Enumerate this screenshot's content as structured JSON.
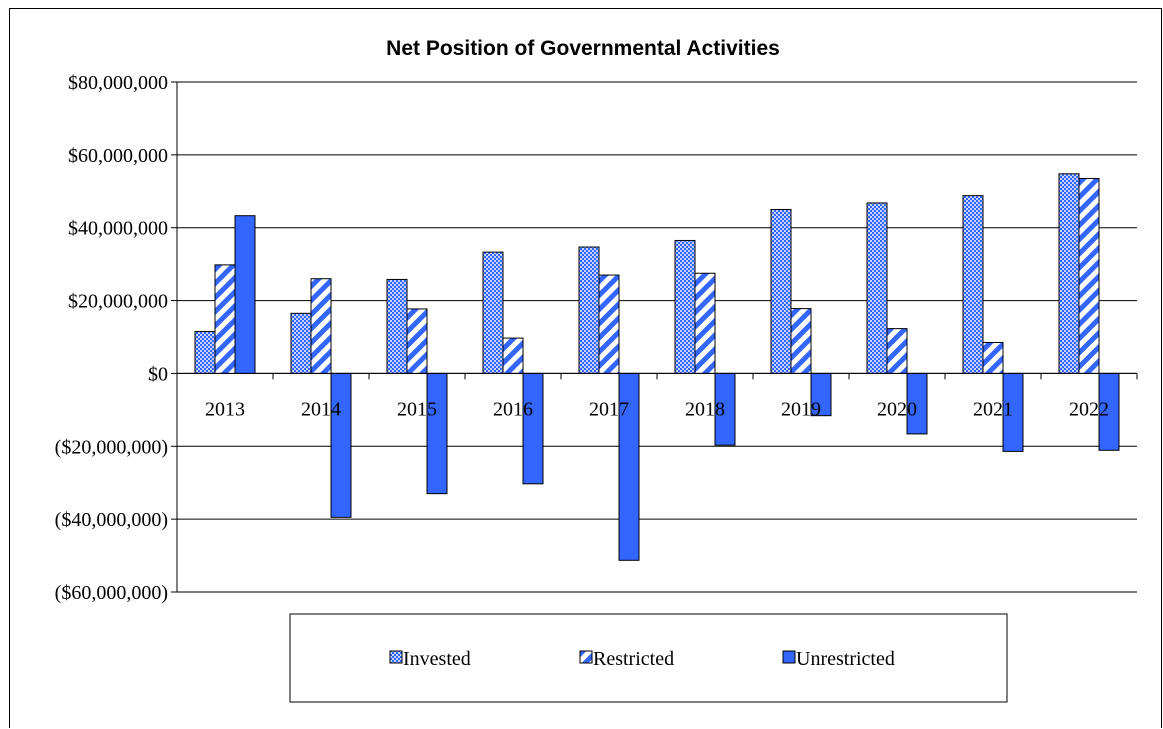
{
  "chart_data": {
    "type": "bar",
    "title": "Net Position of Governmental Activities",
    "categories": [
      "2013",
      "2014",
      "2015",
      "2016",
      "2017",
      "2018",
      "2019",
      "2020",
      "2021",
      "2022"
    ],
    "series": [
      {
        "name": "Invested",
        "pattern": "dots",
        "values": [
          11500000,
          16500000,
          25800000,
          33300000,
          34700000,
          36500000,
          45000000,
          46800000,
          48800000,
          54800000
        ]
      },
      {
        "name": "Restricted",
        "pattern": "stripes",
        "values": [
          29800000,
          26000000,
          17700000,
          9700000,
          27000000,
          27500000,
          17800000,
          12300000,
          8500000,
          53500000
        ]
      },
      {
        "name": "Unrestricted",
        "pattern": "solid",
        "values": [
          43300000,
          -39500000,
          -33000000,
          -30300000,
          -51300000,
          -19700000,
          -11600000,
          -16600000,
          -21400000,
          -21100000
        ]
      }
    ],
    "ylim": [
      -60000000,
      80000000
    ],
    "yticks": [
      80000000,
      60000000,
      40000000,
      20000000,
      0,
      -20000000,
      -40000000,
      -60000000
    ],
    "ytick_labels": [
      "$80,000,000",
      "$60,000,000",
      "$40,000,000",
      "$20,000,000",
      "$0",
      "($20,000,000)",
      "($40,000,000)",
      "($60,000,000)"
    ],
    "grid": true,
    "legend_position": "bottom",
    "colors": {
      "bar_fill": "#3366ff",
      "bar_light": "#c4d2ff",
      "stroke": "#000000"
    }
  }
}
